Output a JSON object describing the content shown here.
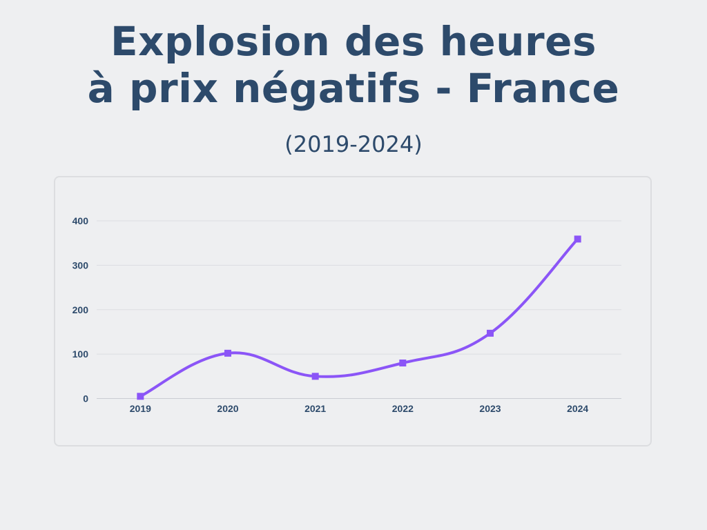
{
  "chart_data": {
    "type": "line",
    "title": "Explosion des heures à prix négatifs - France",
    "title_lines": [
      "Explosion des heures",
      "à prix négatifs - France"
    ],
    "subtitle": "(2019-2024)",
    "categories": [
      "2019",
      "2020",
      "2021",
      "2022",
      "2023",
      "2024"
    ],
    "series": [
      {
        "values": [
          5,
          102,
          50,
          80,
          147,
          359
        ],
        "color": "#8b55f7"
      }
    ],
    "ylim": [
      0,
      400
    ],
    "yticks": [
      "0",
      "100",
      "200",
      "300",
      "400"
    ],
    "grid": true,
    "smooth": true,
    "marker": "square"
  }
}
